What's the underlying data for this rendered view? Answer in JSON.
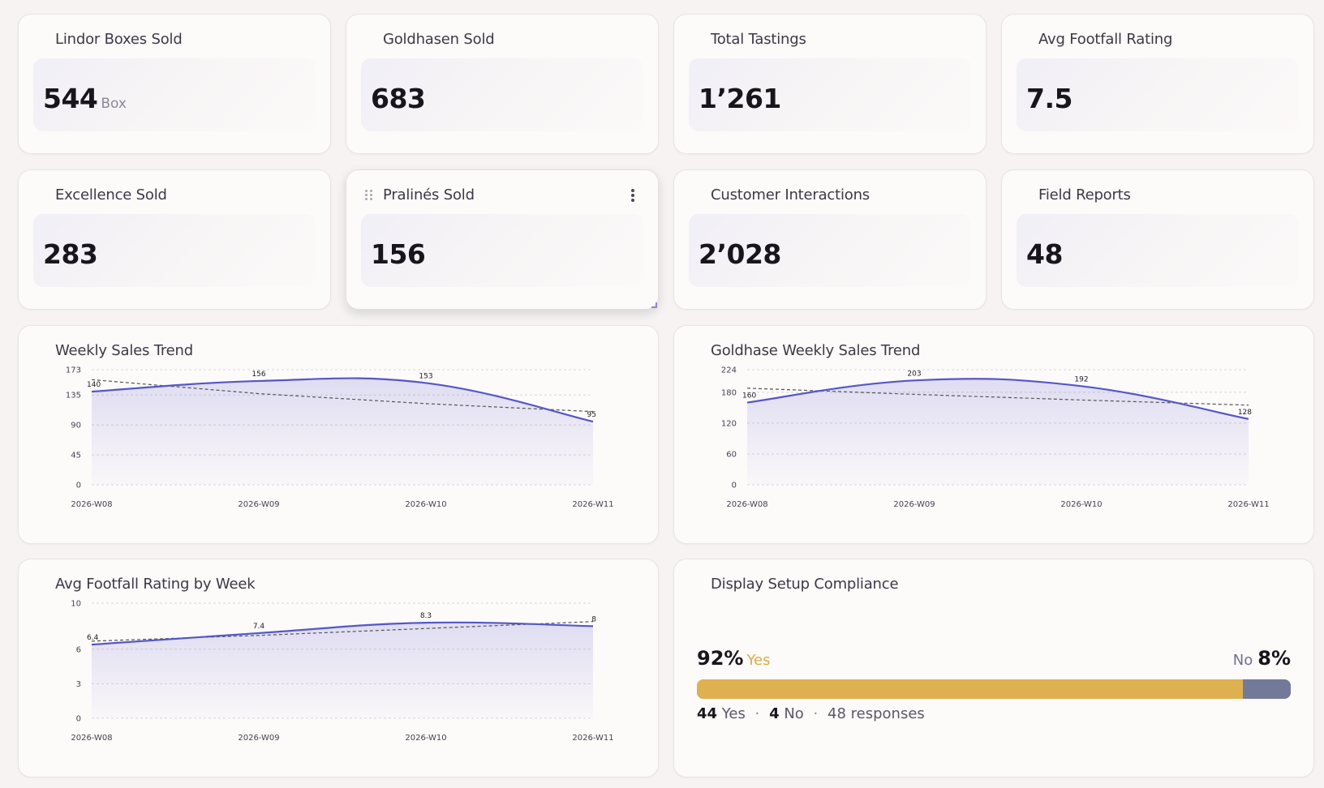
{
  "kpis": [
    {
      "title": "Lindor Boxes Sold",
      "value": "544",
      "unit": "Box"
    },
    {
      "title": "Goldhasen Sold",
      "value": "683",
      "unit": ""
    },
    {
      "title": "Total Tastings",
      "value": "1’261",
      "unit": ""
    },
    {
      "title": "Avg Footfall Rating",
      "value": "7.5",
      "unit": ""
    },
    {
      "title": "Excellence Sold",
      "value": "283",
      "unit": ""
    },
    {
      "title": "Pralinés Sold",
      "value": "156",
      "unit": ""
    },
    {
      "title": "Customer Interactions",
      "value": "2’028",
      "unit": ""
    },
    {
      "title": "Field Reports",
      "value": "48",
      "unit": ""
    }
  ],
  "chart_data": [
    {
      "type": "area",
      "title": "Weekly Sales Trend",
      "categories": [
        "2026-W08",
        "2026-W09",
        "2026-W10",
        "2026-W11"
      ],
      "series": [
        {
          "values": [
            140,
            156,
            153,
            95
          ]
        }
      ],
      "trendline": [
        158,
        137,
        122,
        110
      ],
      "yticks": [
        0,
        45,
        90,
        135,
        173
      ],
      "ylim": [
        0,
        173
      ],
      "grid": true,
      "colors": {
        "line": "#5557c8",
        "trend": "#555555"
      }
    },
    {
      "type": "area",
      "title": "Goldhase Weekly Sales Trend",
      "categories": [
        "2026-W08",
        "2026-W09",
        "2026-W10",
        "2026-W11"
      ],
      "series": [
        {
          "values": [
            160,
            203,
            192,
            128
          ]
        }
      ],
      "trendline": [
        188,
        176,
        165,
        155
      ],
      "yticks": [
        0,
        60,
        120,
        180,
        224
      ],
      "ylim": [
        0,
        224
      ],
      "grid": true,
      "colors": {
        "line": "#5557c8",
        "trend": "#555555"
      }
    },
    {
      "type": "area",
      "title": "Avg Footfall Rating by Week",
      "categories": [
        "2026-W08",
        "2026-W09",
        "2026-W10",
        "2026-W11"
      ],
      "series": [
        {
          "values": [
            6.4,
            7.4,
            8.3,
            8
          ]
        }
      ],
      "trendline": [
        6.7,
        7.2,
        7.8,
        8.4
      ],
      "yticks": [
        0,
        3,
        6,
        10
      ],
      "ylim": [
        0,
        10
      ],
      "grid": true,
      "colors": {
        "line": "#5557c8",
        "trend": "#555555"
      }
    }
  ],
  "compliance": {
    "title": "Display Setup Compliance",
    "yes_pct": "92%",
    "yes_label": "Yes",
    "no_pct": "8%",
    "no_label": "No",
    "yes_fraction": 0.92,
    "yes_count": "44",
    "yes_word": "Yes",
    "no_count": "4",
    "no_word": "No",
    "dot": "·",
    "responses": "48 responses",
    "colors": {
      "yes": "#dfb04f",
      "no": "#737a99"
    }
  }
}
